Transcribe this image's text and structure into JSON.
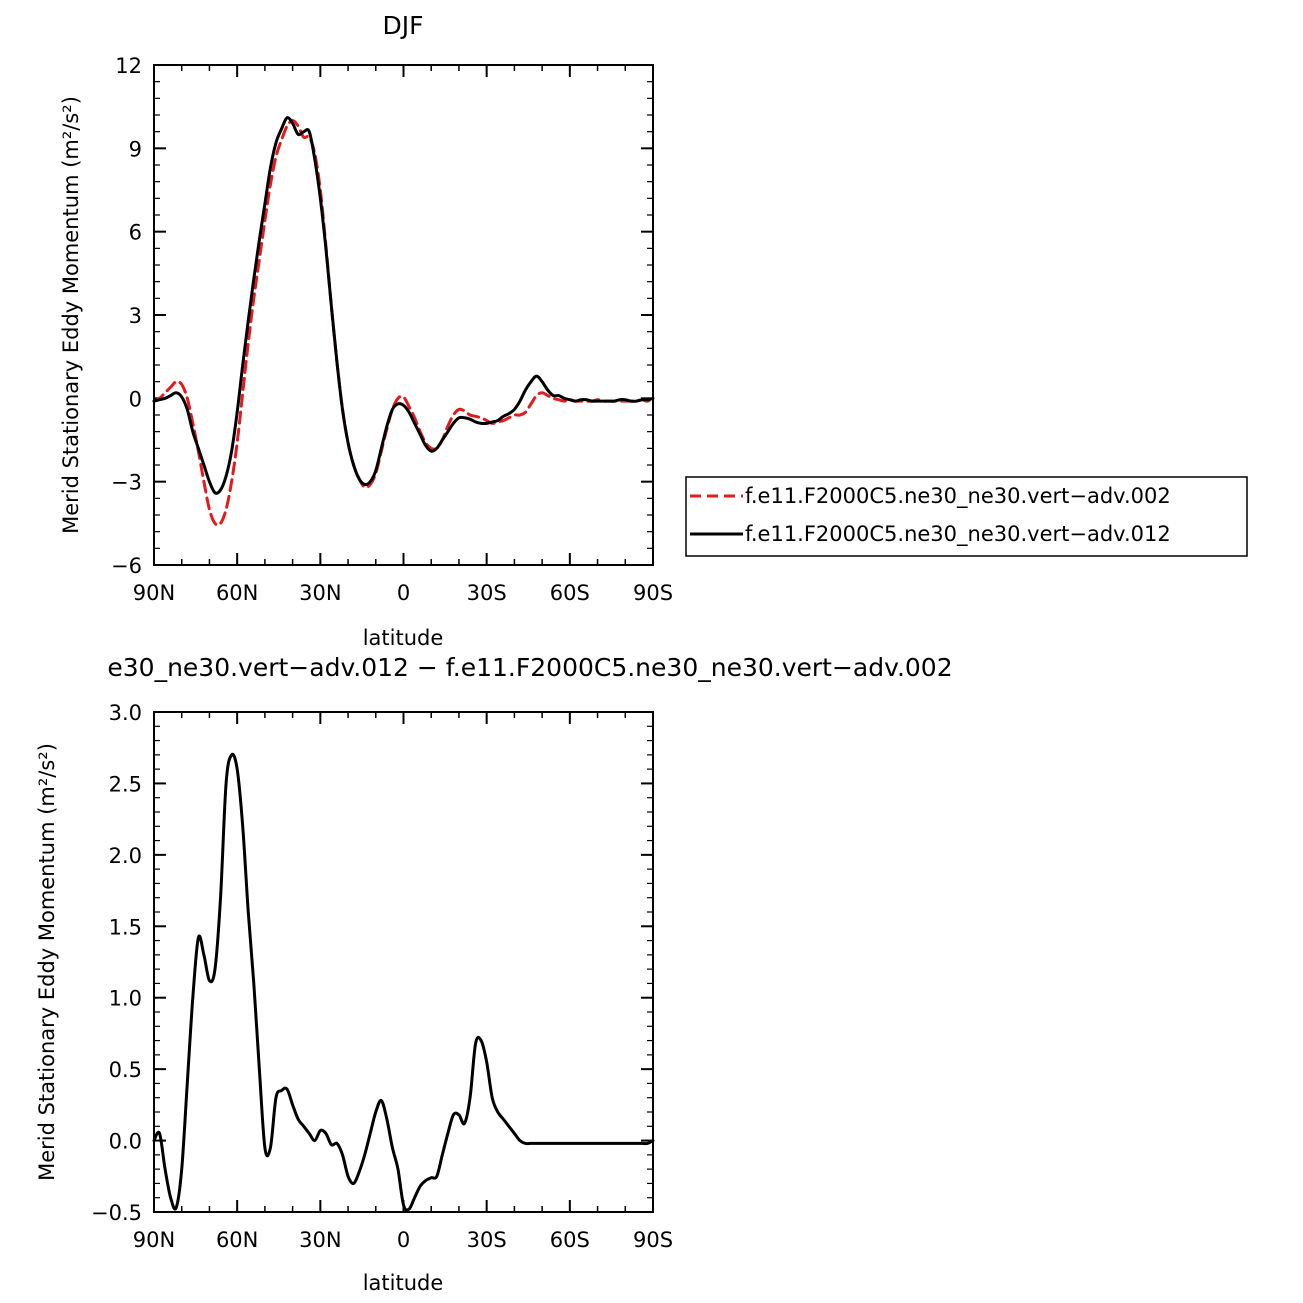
{
  "chart_data": [
    {
      "type": "line",
      "title": "DJF",
      "xlabel": "latitude",
      "ylabel": "Merid Stationary Eddy Momentum (m²/s²)",
      "xlim": [
        90,
        -90
      ],
      "ylim": [
        -6,
        12
      ],
      "x_ticks": [
        {
          "value": 90,
          "label": "90N"
        },
        {
          "value": 60,
          "label": "60N"
        },
        {
          "value": 30,
          "label": "30N"
        },
        {
          "value": 0,
          "label": "0"
        },
        {
          "value": -30,
          "label": "30S"
        },
        {
          "value": -60,
          "label": "60S"
        },
        {
          "value": -90,
          "label": "90S"
        }
      ],
      "y_ticks": [
        {
          "value": 12,
          "label": "12"
        },
        {
          "value": 9,
          "label": "9"
        },
        {
          "value": 6,
          "label": "6"
        },
        {
          "value": 3,
          "label": "3"
        },
        {
          "value": 0,
          "label": "0"
        },
        {
          "value": -3,
          "label": "−3"
        },
        {
          "value": -6,
          "label": "−6"
        }
      ],
      "legend_position": "right",
      "series": [
        {
          "name": "f.e11.F2000C5.ne30_ne30.vert−adv.002",
          "color": "#e41a1c",
          "dash": "dashed",
          "x": [
            90,
            88,
            86,
            84,
            82,
            80,
            78,
            76,
            74,
            72,
            70,
            68,
            66,
            64,
            62,
            60,
            58,
            56,
            54,
            52,
            50,
            48,
            46,
            44,
            42,
            40,
            38,
            36,
            34,
            32,
            30,
            28,
            26,
            24,
            22,
            20,
            18,
            16,
            14,
            12,
            10,
            8,
            6,
            4,
            2,
            0,
            -2,
            -4,
            -6,
            -8,
            -10,
            -12,
            -14,
            -16,
            -18,
            -20,
            -22,
            -24,
            -26,
            -28,
            -30,
            -32,
            -34,
            -36,
            -38,
            -40,
            -42,
            -44,
            -46,
            -48,
            -50,
            -52,
            -54,
            -56,
            -58,
            -60,
            -62,
            -64,
            -66,
            -68,
            -70,
            -72,
            -74,
            -76,
            -78,
            -80,
            -82,
            -84,
            -86,
            -88,
            -90
          ],
          "y": [
            -0.1,
            0.0,
            0.2,
            0.4,
            0.6,
            0.5,
            0.0,
            -0.9,
            -1.9,
            -3.0,
            -4.0,
            -4.5,
            -4.5,
            -4.0,
            -3.0,
            -1.6,
            0.2,
            2.0,
            3.6,
            5.0,
            6.4,
            7.7,
            8.7,
            9.3,
            9.8,
            10.0,
            9.8,
            9.4,
            9.4,
            8.8,
            7.5,
            5.5,
            3.3,
            1.3,
            -0.4,
            -1.6,
            -2.4,
            -2.9,
            -3.2,
            -3.1,
            -2.7,
            -1.9,
            -1.1,
            -0.4,
            0.0,
            0.05,
            -0.3,
            -0.7,
            -1.2,
            -1.6,
            -1.8,
            -1.8,
            -1.5,
            -1.0,
            -0.6,
            -0.4,
            -0.45,
            -0.6,
            -0.65,
            -0.7,
            -0.8,
            -0.9,
            -0.85,
            -0.8,
            -0.7,
            -0.6,
            -0.6,
            -0.5,
            -0.2,
            0.1,
            0.2,
            0.1,
            0.0,
            -0.05,
            -0.1,
            -0.05,
            -0.1,
            -0.1,
            -0.1,
            -0.1,
            -0.05,
            -0.1,
            -0.1,
            -0.1,
            -0.1,
            -0.1,
            -0.1,
            -0.1,
            -0.05,
            -0.1,
            0.0
          ]
        },
        {
          "name": "f.e11.F2000C5.ne30_ne30.vert−adv.012",
          "color": "#000000",
          "dash": "solid",
          "x": [
            90,
            88,
            86,
            84,
            82,
            80,
            78,
            76,
            74,
            72,
            70,
            68,
            66,
            64,
            62,
            60,
            58,
            56,
            54,
            52,
            50,
            48,
            46,
            44,
            42,
            40,
            38,
            36,
            34,
            32,
            30,
            28,
            26,
            24,
            22,
            20,
            18,
            16,
            14,
            12,
            10,
            8,
            6,
            4,
            2,
            0,
            -2,
            -4,
            -6,
            -8,
            -10,
            -12,
            -14,
            -16,
            -18,
            -20,
            -22,
            -24,
            -26,
            -28,
            -30,
            -32,
            -34,
            -36,
            -38,
            -40,
            -42,
            -44,
            -46,
            -48,
            -50,
            -52,
            -54,
            -56,
            -58,
            -60,
            -62,
            -64,
            -66,
            -68,
            -70,
            -72,
            -74,
            -76,
            -78,
            -80,
            -82,
            -84,
            -86,
            -88,
            -90
          ],
          "y": [
            -0.1,
            -0.05,
            0.0,
            0.1,
            0.2,
            0.05,
            -0.4,
            -1.2,
            -1.8,
            -2.4,
            -3.0,
            -3.4,
            -3.3,
            -2.8,
            -1.9,
            -0.5,
            1.2,
            2.8,
            4.3,
            5.7,
            7.0,
            8.3,
            9.2,
            9.7,
            10.1,
            9.9,
            9.5,
            9.6,
            9.6,
            8.6,
            7.2,
            5.4,
            3.3,
            1.3,
            -0.4,
            -1.6,
            -2.4,
            -2.9,
            -3.1,
            -3.0,
            -2.6,
            -1.8,
            -1.0,
            -0.4,
            -0.2,
            -0.25,
            -0.5,
            -0.9,
            -1.3,
            -1.7,
            -1.9,
            -1.8,
            -1.5,
            -1.2,
            -0.9,
            -0.7,
            -0.7,
            -0.75,
            -0.85,
            -0.9,
            -0.9,
            -0.85,
            -0.8,
            -0.65,
            -0.55,
            -0.4,
            -0.1,
            0.3,
            0.6,
            0.8,
            0.6,
            0.3,
            0.1,
            0.1,
            0.0,
            -0.05,
            -0.1,
            -0.05,
            -0.05,
            -0.1,
            -0.1,
            -0.1,
            -0.1,
            -0.1,
            -0.05,
            -0.05,
            -0.1,
            -0.1,
            -0.05,
            -0.05,
            0.0
          ]
        }
      ]
    },
    {
      "type": "line",
      "title": "e30_ne30.vert−adv.012 − f.e11.F2000C5.ne30_ne30.vert−adv.002",
      "xlabel": "latitude",
      "ylabel": "Merid Stationary Eddy Momentum (m²/s²)",
      "xlim": [
        90,
        -90
      ],
      "ylim": [
        -0.5,
        3.0
      ],
      "x_ticks": [
        {
          "value": 90,
          "label": "90N"
        },
        {
          "value": 60,
          "label": "60N"
        },
        {
          "value": 30,
          "label": "30N"
        },
        {
          "value": 0,
          "label": "0"
        },
        {
          "value": -30,
          "label": "30S"
        },
        {
          "value": -60,
          "label": "60S"
        },
        {
          "value": -90,
          "label": "90S"
        }
      ],
      "y_ticks": [
        {
          "value": 3.0,
          "label": "3.0"
        },
        {
          "value": 2.5,
          "label": "2.5"
        },
        {
          "value": 2.0,
          "label": "2.0"
        },
        {
          "value": 1.5,
          "label": "1.5"
        },
        {
          "value": 1.0,
          "label": "1.0"
        },
        {
          "value": 0.5,
          "label": "0.5"
        },
        {
          "value": 0.0,
          "label": "0.0"
        },
        {
          "value": -0.5,
          "label": "−0.5"
        }
      ],
      "series": [
        {
          "color": "#000000",
          "dash": "solid",
          "x": [
            90,
            88,
            86,
            84,
            82,
            80,
            78,
            76,
            74,
            72,
            70,
            68,
            66,
            64,
            62,
            60,
            58,
            56,
            54,
            52,
            50,
            48,
            46,
            44,
            42,
            40,
            38,
            36,
            34,
            32,
            30,
            28,
            26,
            24,
            22,
            20,
            18,
            16,
            14,
            12,
            10,
            8,
            6,
            4,
            2,
            0,
            -2,
            -4,
            -6,
            -8,
            -10,
            -12,
            -14,
            -16,
            -18,
            -20,
            -22,
            -24,
            -26,
            -28,
            -30,
            -32,
            -34,
            -36,
            -38,
            -40,
            -42,
            -44,
            -46,
            -48,
            -50,
            -52,
            -54,
            -56,
            -58,
            -60,
            -62,
            -64,
            -66,
            -68,
            -70,
            -72,
            -74,
            -76,
            -78,
            -80,
            -82,
            -84,
            -86,
            -88,
            -90
          ],
          "y": [
            0.0,
            0.05,
            -0.2,
            -0.4,
            -0.47,
            -0.2,
            0.4,
            1.0,
            1.42,
            1.3,
            1.12,
            1.2,
            1.7,
            2.5,
            2.7,
            2.6,
            2.2,
            1.6,
            1.1,
            0.5,
            -0.05,
            -0.05,
            0.3,
            0.35,
            0.36,
            0.25,
            0.15,
            0.1,
            0.05,
            0.0,
            0.07,
            0.05,
            -0.03,
            -0.02,
            -0.1,
            -0.25,
            -0.3,
            -0.22,
            -0.1,
            0.05,
            0.2,
            0.28,
            0.15,
            -0.05,
            -0.2,
            -0.45,
            -0.48,
            -0.4,
            -0.32,
            -0.28,
            -0.26,
            -0.25,
            -0.1,
            0.05,
            0.18,
            0.18,
            0.12,
            0.3,
            0.68,
            0.7,
            0.55,
            0.3,
            0.2,
            0.15,
            0.1,
            0.05,
            0.0,
            -0.02,
            -0.02,
            -0.02,
            -0.02,
            -0.02,
            -0.02,
            -0.02,
            -0.02,
            -0.02,
            -0.02,
            -0.02,
            -0.02,
            -0.02,
            -0.02,
            -0.02,
            -0.02,
            -0.02,
            -0.02,
            -0.02,
            -0.02,
            -0.02,
            -0.02,
            -0.02,
            0.0
          ]
        }
      ]
    }
  ]
}
